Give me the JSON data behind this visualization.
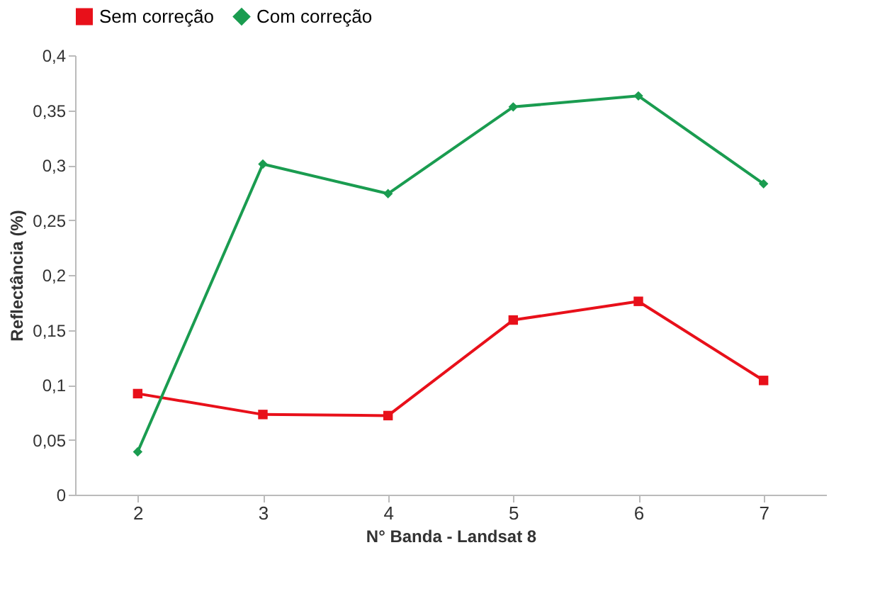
{
  "chart_data": {
    "type": "line",
    "xlabel": "N° Banda - Landsat 8",
    "ylabel": "Reflectância (%)",
    "categories": [
      "2",
      "3",
      "4",
      "5",
      "6",
      "7"
    ],
    "series": [
      {
        "name": "Sem correção",
        "color": "#e8101a",
        "marker": "square",
        "values": [
          0.092,
          0.073,
          0.072,
          0.159,
          0.176,
          0.104
        ]
      },
      {
        "name": "Com correção",
        "color": "#1a9c50",
        "marker": "diamond",
        "values": [
          0.039,
          0.301,
          0.274,
          0.353,
          0.363,
          0.283
        ]
      }
    ],
    "ylim": [
      0,
      0.4
    ],
    "yticks": [
      {
        "value": 0,
        "label": "0"
      },
      {
        "value": 0.05,
        "label": "0,05"
      },
      {
        "value": 0.1,
        "label": "0,1"
      },
      {
        "value": 0.15,
        "label": "0,15"
      },
      {
        "value": 0.2,
        "label": "0,2"
      },
      {
        "value": 0.25,
        "label": "0,25"
      },
      {
        "value": 0.3,
        "label": "0,3"
      },
      {
        "value": 0.35,
        "label": "0,35"
      },
      {
        "value": 0.4,
        "label": "0,4"
      }
    ],
    "grid": false,
    "legend": "top",
    "line_style": "solid"
  }
}
